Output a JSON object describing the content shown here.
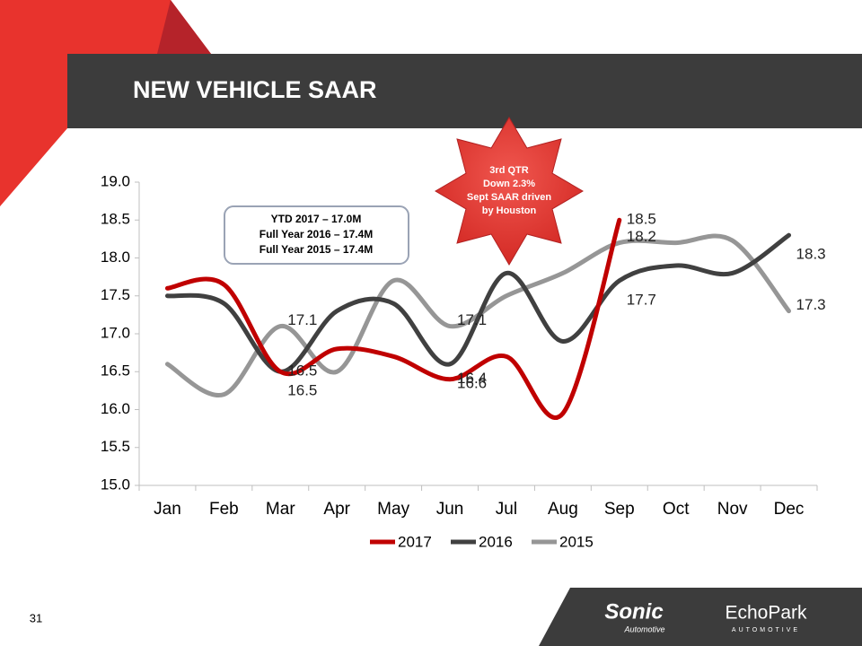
{
  "slide": {
    "title": "NEW VEHICLE SAAR",
    "page_number": "31",
    "textbox": [
      "YTD 2017 – 17.0M",
      "Full Year 2016 – 17.4M",
      "Full Year 2015 – 17.4M"
    ],
    "callout": [
      "3rd QTR",
      "Down 2.3%",
      "Sept SAAR driven",
      "by Houston"
    ],
    "logos": [
      "Sonic",
      "Automotive",
      "EchoPark",
      "AUTOMOTIVE"
    ]
  },
  "chart_data": {
    "type": "line",
    "categories": [
      "Jan",
      "Feb",
      "Mar",
      "Apr",
      "May",
      "Jun",
      "Jul",
      "Aug",
      "Sep",
      "Oct",
      "Nov",
      "Dec"
    ],
    "ylim": [
      15,
      19
    ],
    "yticks": [
      {
        "value": 15,
        "label": "15.0"
      },
      {
        "value": 15.5,
        "label": "15.5"
      },
      {
        "value": 16,
        "label": "16.0"
      },
      {
        "value": 16.5,
        "label": "16.5"
      },
      {
        "value": 17,
        "label": "17.0"
      },
      {
        "value": 17.5,
        "label": "17.5"
      },
      {
        "value": 18,
        "label": "18.0"
      },
      {
        "value": 18.5,
        "label": "18.5"
      },
      {
        "value": 19,
        "label": "19.0"
      }
    ],
    "legend": "bottom",
    "series": [
      {
        "name": "2017",
        "color": "#c00000",
        "values": [
          17.6,
          17.65,
          16.5,
          16.8,
          16.7,
          16.4,
          16.7,
          15.95,
          18.5,
          null,
          null,
          null
        ],
        "value_labels": [
          null,
          null,
          "16.5",
          null,
          null,
          "16.4",
          null,
          null,
          "18.5",
          null,
          null,
          null
        ]
      },
      {
        "name": "2016",
        "color": "#404040",
        "values": [
          17.5,
          17.4,
          16.5,
          17.3,
          17.4,
          16.6,
          17.8,
          16.9,
          17.7,
          17.9,
          17.8,
          18.3
        ],
        "value_labels": [
          null,
          null,
          "16.5",
          null,
          null,
          "16.6",
          null,
          null,
          "17.7",
          null,
          null,
          "18.3"
        ]
      },
      {
        "name": "2015",
        "color": "#969696",
        "values": [
          16.6,
          16.2,
          17.1,
          16.5,
          17.7,
          17.1,
          17.5,
          17.8,
          18.2,
          18.2,
          18.23,
          17.3
        ],
        "value_labels": [
          null,
          null,
          "17.1",
          null,
          null,
          "17.1",
          null,
          null,
          "18.2",
          null,
          null,
          "17.3"
        ]
      }
    ]
  }
}
